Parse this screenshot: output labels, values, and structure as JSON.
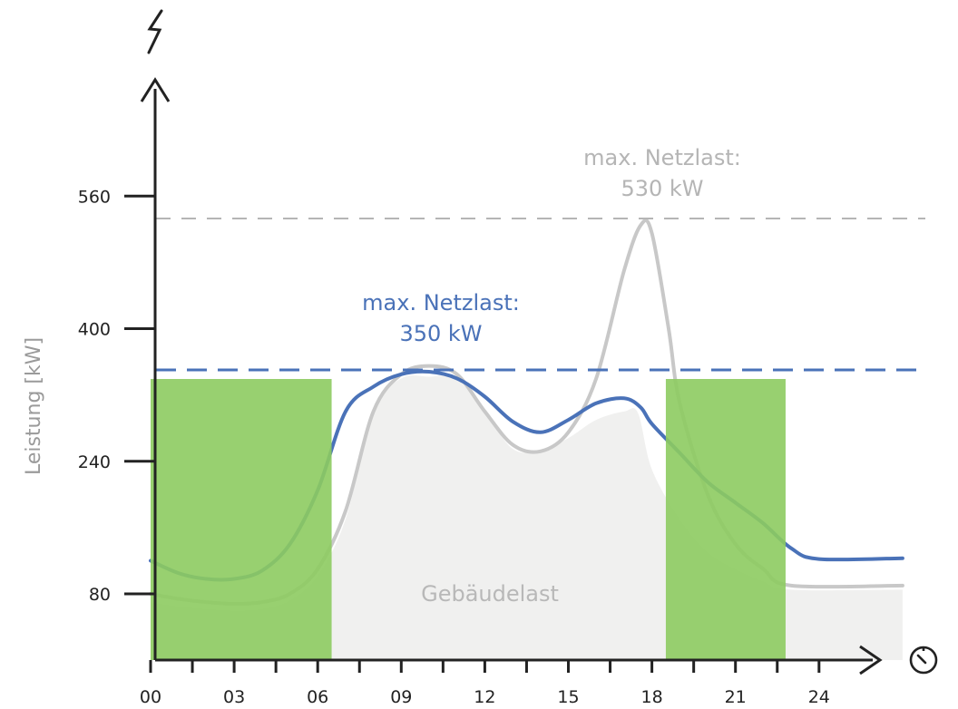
{
  "chart_data": {
    "type": "area",
    "title": "",
    "xlabel": "",
    "ylabel": "Leistung [kW]",
    "x_ticks": [
      "00",
      "03",
      "06",
      "09",
      "12",
      "15",
      "18",
      "21",
      "24"
    ],
    "y_ticks": [
      80,
      240,
      400,
      560
    ],
    "xlim": [
      0,
      27
    ],
    "ylim": [
      10,
      560
    ],
    "charging_windows": [
      [
        0,
        6.5
      ],
      [
        18.5,
        22.8
      ]
    ],
    "series": [
      {
        "name": "",
        "style": "area",
        "color": "#f0f0ef",
        "points": [
          [
            0,
            70
          ],
          [
            1,
            65
          ],
          [
            2,
            62
          ],
          [
            3,
            60
          ],
          [
            4,
            62
          ],
          [
            5,
            72
          ],
          [
            6,
            102
          ],
          [
            7,
            170
          ],
          [
            8,
            300
          ],
          [
            9,
            340
          ],
          [
            10,
            342
          ],
          [
            11,
            340
          ],
          [
            12,
            300
          ],
          [
            13,
            255
          ],
          [
            14,
            253
          ],
          [
            15,
            268
          ],
          [
            16,
            290
          ],
          [
            17,
            300
          ],
          [
            17.5,
            298
          ],
          [
            18,
            230
          ],
          [
            19,
            170
          ],
          [
            20,
            130
          ],
          [
            21,
            110
          ],
          [
            22,
            95
          ],
          [
            23,
            85
          ],
          [
            27,
            85
          ]
        ]
      },
      {
        "name": "",
        "style": "line",
        "color": "#c8c8c8",
        "points": [
          [
            0,
            80
          ],
          [
            1,
            74
          ],
          [
            2,
            70
          ],
          [
            3,
            68
          ],
          [
            4,
            70
          ],
          [
            5,
            80
          ],
          [
            6,
            110
          ],
          [
            7,
            180
          ],
          [
            8,
            300
          ],
          [
            9,
            345
          ],
          [
            10,
            355
          ],
          [
            11,
            345
          ],
          [
            12,
            300
          ],
          [
            13,
            260
          ],
          [
            14,
            252
          ],
          [
            15,
            275
          ],
          [
            16,
            340
          ],
          [
            17,
            470
          ],
          [
            17.6,
            525
          ],
          [
            18,
            515
          ],
          [
            18.6,
            400
          ],
          [
            19,
            310
          ],
          [
            20,
            200
          ],
          [
            21,
            140
          ],
          [
            22,
            110
          ],
          [
            23,
            90
          ],
          [
            27,
            90
          ]
        ]
      },
      {
        "name": "",
        "style": "line",
        "color": "#4a72b8",
        "points": [
          [
            0,
            120
          ],
          [
            1,
            105
          ],
          [
            2,
            98
          ],
          [
            3,
            98
          ],
          [
            4,
            108
          ],
          [
            5,
            140
          ],
          [
            6,
            205
          ],
          [
            7,
            300
          ],
          [
            8,
            330
          ],
          [
            9,
            345
          ],
          [
            10,
            348
          ],
          [
            11,
            340
          ],
          [
            12,
            318
          ],
          [
            13,
            288
          ],
          [
            14,
            275
          ],
          [
            15,
            290
          ],
          [
            16,
            310
          ],
          [
            17,
            316
          ],
          [
            17.6,
            305
          ],
          [
            18,
            285
          ],
          [
            19,
            250
          ],
          [
            20,
            215
          ],
          [
            21,
            190
          ],
          [
            22,
            165
          ],
          [
            23,
            135
          ],
          [
            24,
            122
          ],
          [
            27,
            123
          ]
        ]
      }
    ],
    "annotations": [
      {
        "id": "grey_max",
        "lines": [
          "max. Netzlast:",
          "530 kW"
        ],
        "level": 530,
        "color": "#b5b5b5"
      },
      {
        "id": "blue_max",
        "lines": [
          "max. Netzlast:",
          "350 kW"
        ],
        "level": 350,
        "color": "#4a72b8"
      },
      {
        "id": "area_label",
        "text": "Gebäudelast",
        "color": "#b8b8b8"
      }
    ],
    "colors": {
      "charging": "#8dcb61",
      "axis": "#222222"
    }
  }
}
